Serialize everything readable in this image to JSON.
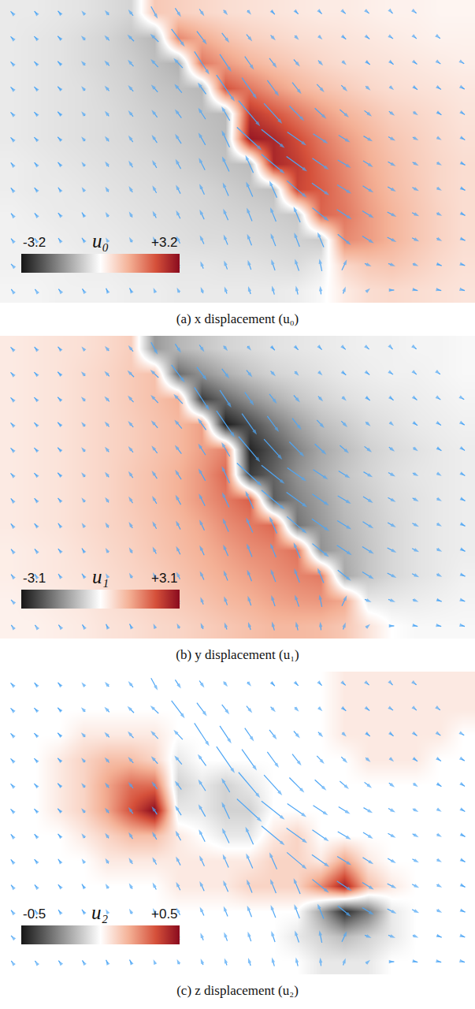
{
  "chart_data": [
    {
      "type": "heatmap",
      "caption": "(a) x displacement (u₀)",
      "colorbar_title": "u₀",
      "tick_labels": false,
      "x": [
        0,
        1,
        2,
        3,
        4,
        5,
        6,
        7,
        8,
        9,
        10,
        11,
        12,
        13,
        14,
        15,
        16,
        17,
        18,
        19
      ],
      "y": [
        0,
        1,
        2,
        3,
        4,
        5,
        6,
        7,
        8,
        9,
        10,
        11
      ],
      "xlim": [
        -0.5,
        19.5
      ],
      "ylim": [
        11.5,
        -0.5
      ],
      "colorbar_range": [
        -3.2,
        3.2
      ],
      "colorbar_ticks": [
        -3.2,
        {
          "value": 3.2,
          "label": "+3.2"
        }
      ],
      "values": [
        [
          -0.3,
          -0.3,
          -0.35,
          -0.4,
          -0.5,
          -0.6,
          0.8,
          0.7,
          0.6,
          0.5,
          0.45,
          0.4,
          0.35,
          0.3,
          0.3,
          0.25,
          0.2,
          0.2,
          0.15,
          0.15
        ],
        [
          -0.3,
          -0.35,
          -0.4,
          -0.5,
          -0.6,
          -0.8,
          -1.0,
          1.6,
          1.2,
          0.9,
          0.7,
          0.6,
          0.5,
          0.45,
          0.4,
          0.35,
          0.3,
          0.25,
          0.2,
          0.2
        ],
        [
          -0.3,
          -0.35,
          -0.4,
          -0.5,
          -0.6,
          -0.7,
          -0.9,
          -1.1,
          1.8,
          1.4,
          1.1,
          0.9,
          0.75,
          0.6,
          0.5,
          0.45,
          0.4,
          0.35,
          0.3,
          0.25
        ],
        [
          -0.3,
          -0.35,
          -0.4,
          -0.45,
          -0.55,
          -0.65,
          -0.8,
          -0.9,
          -1.0,
          2.2,
          1.8,
          1.4,
          1.1,
          0.9,
          0.75,
          0.6,
          0.5,
          0.45,
          0.4,
          0.35
        ],
        [
          -0.3,
          -0.35,
          -0.4,
          -0.45,
          -0.5,
          -0.6,
          -0.7,
          -0.8,
          -0.9,
          -1.0,
          2.6,
          2.2,
          1.8,
          1.4,
          1.1,
          0.9,
          0.7,
          0.6,
          0.5,
          0.4
        ],
        [
          -0.3,
          -0.35,
          -0.4,
          -0.45,
          -0.5,
          -0.55,
          -0.65,
          -0.75,
          -0.85,
          -0.95,
          3.0,
          2.8,
          2.3,
          1.8,
          1.4,
          1.1,
          0.85,
          0.7,
          0.55,
          0.45
        ],
        [
          -0.25,
          -0.3,
          -0.35,
          -0.4,
          -0.45,
          -0.5,
          -0.55,
          -0.65,
          -0.75,
          -0.85,
          -0.95,
          2.8,
          2.5,
          2.0,
          1.6,
          1.2,
          0.95,
          0.75,
          0.6,
          0.5
        ],
        [
          -0.25,
          -0.3,
          -0.3,
          -0.35,
          -0.4,
          -0.45,
          -0.5,
          -0.55,
          -0.6,
          -0.7,
          -0.8,
          -0.9,
          2.4,
          2.1,
          1.7,
          1.3,
          1.0,
          0.8,
          0.6,
          0.5
        ],
        [
          -0.2,
          -0.25,
          -0.3,
          -0.3,
          -0.35,
          -0.4,
          -0.45,
          -0.5,
          -0.55,
          -0.6,
          -0.65,
          -0.7,
          -0.8,
          2.0,
          1.8,
          1.4,
          1.1,
          0.85,
          0.65,
          0.5
        ],
        [
          -0.2,
          -0.2,
          -0.25,
          -0.3,
          -0.3,
          -0.35,
          -0.4,
          -0.45,
          -0.5,
          -0.5,
          -0.55,
          -0.6,
          -0.65,
          -0.75,
          1.6,
          1.4,
          1.1,
          0.85,
          0.65,
          0.5
        ],
        [
          -0.2,
          -0.2,
          -0.2,
          -0.25,
          -0.25,
          -0.3,
          -0.3,
          -0.35,
          -0.35,
          -0.4,
          -0.4,
          -0.45,
          -0.5,
          -0.3,
          0.6,
          0.8,
          0.85,
          0.7,
          0.55,
          0.45
        ],
        [
          -0.15,
          -0.15,
          -0.2,
          -0.2,
          -0.2,
          -0.25,
          -0.25,
          -0.3,
          -0.3,
          -0.3,
          -0.3,
          -0.3,
          -0.25,
          -0.1,
          0.3,
          0.5,
          0.55,
          0.5,
          0.45,
          0.4
        ]
      ]
    },
    {
      "type": "heatmap",
      "caption": "(b) y displacement (u₁)",
      "colorbar_title": "u₁",
      "tick_labels": false,
      "x": [
        0,
        1,
        2,
        3,
        4,
        5,
        6,
        7,
        8,
        9,
        10,
        11,
        12,
        13,
        14,
        15,
        16,
        17,
        18,
        19
      ],
      "y": [
        0,
        1,
        2,
        3,
        4,
        5,
        6,
        7,
        8,
        9,
        10,
        11
      ],
      "xlim": [
        -0.5,
        19.5
      ],
      "ylim": [
        11.5,
        -0.5
      ],
      "colorbar_range": [
        -3.1,
        3.1
      ],
      "colorbar_ticks": [
        -3.1,
        {
          "value": 3.1,
          "label": "+3.1"
        }
      ],
      "values": [
        [
          0.3,
          0.35,
          0.4,
          0.45,
          0.55,
          0.7,
          -1.4,
          -1.0,
          -0.8,
          -0.6,
          -0.5,
          -0.4,
          -0.35,
          -0.3,
          -0.25,
          -0.2,
          -0.2,
          -0.15,
          -0.15,
          -0.1
        ],
        [
          0.3,
          0.35,
          0.4,
          0.5,
          0.6,
          0.75,
          0.9,
          -2.0,
          -1.5,
          -1.1,
          -0.8,
          -0.6,
          -0.5,
          -0.4,
          -0.3,
          -0.25,
          -0.2,
          -0.2,
          -0.15,
          -0.1
        ],
        [
          0.3,
          0.35,
          0.4,
          0.5,
          0.6,
          0.75,
          0.9,
          1.1,
          -2.6,
          -2.0,
          -1.5,
          -1.1,
          -0.8,
          -0.6,
          -0.45,
          -0.35,
          -0.3,
          -0.25,
          -0.2,
          -0.15
        ],
        [
          0.3,
          0.35,
          0.4,
          0.5,
          0.6,
          0.7,
          0.85,
          1.0,
          1.3,
          -3.0,
          -2.4,
          -1.8,
          -1.3,
          -0.9,
          -0.7,
          -0.5,
          -0.4,
          -0.3,
          -0.25,
          -0.2
        ],
        [
          0.3,
          0.35,
          0.4,
          0.5,
          0.6,
          0.7,
          0.85,
          1.0,
          1.3,
          1.6,
          -2.9,
          -2.3,
          -1.7,
          -1.2,
          -0.9,
          -0.65,
          -0.5,
          -0.4,
          -0.3,
          -0.25
        ],
        [
          0.3,
          0.35,
          0.4,
          0.5,
          0.6,
          0.75,
          0.9,
          1.1,
          1.4,
          1.9,
          -2.6,
          -2.1,
          -1.5,
          -1.1,
          -0.8,
          -0.6,
          -0.45,
          -0.35,
          -0.3,
          -0.25
        ],
        [
          0.3,
          0.35,
          0.4,
          0.5,
          0.6,
          0.75,
          0.9,
          1.1,
          1.4,
          1.7,
          2.0,
          -2.2,
          -1.7,
          -1.3,
          -0.9,
          -0.7,
          -0.5,
          -0.4,
          -0.3,
          -0.25
        ],
        [
          0.3,
          0.35,
          0.4,
          0.5,
          0.6,
          0.7,
          0.85,
          1.0,
          1.2,
          1.5,
          1.7,
          1.9,
          -1.9,
          -1.4,
          -1.0,
          -0.75,
          -0.55,
          -0.4,
          -0.3,
          -0.25
        ],
        [
          0.25,
          0.3,
          0.35,
          0.45,
          0.55,
          0.65,
          0.8,
          0.95,
          1.1,
          1.3,
          1.5,
          1.6,
          1.8,
          -1.5,
          -1.1,
          -0.8,
          -0.55,
          -0.4,
          -0.3,
          -0.25
        ],
        [
          0.25,
          0.3,
          0.35,
          0.4,
          0.5,
          0.6,
          0.7,
          0.85,
          1.0,
          1.15,
          1.3,
          1.45,
          1.6,
          1.7,
          -1.2,
          -0.8,
          -0.55,
          -0.4,
          -0.3,
          -0.2
        ],
        [
          0.2,
          0.25,
          0.3,
          0.35,
          0.45,
          0.55,
          0.65,
          0.75,
          0.85,
          1.0,
          1.1,
          1.25,
          1.35,
          1.4,
          1.2,
          -0.3,
          -0.3,
          -0.25,
          -0.2,
          -0.15
        ],
        [
          0.2,
          0.2,
          0.25,
          0.3,
          0.4,
          0.45,
          0.55,
          0.6,
          0.7,
          0.8,
          0.9,
          1.0,
          1.0,
          0.95,
          0.8,
          0.4,
          0.0,
          -0.1,
          -0.1,
          -0.1
        ]
      ]
    },
    {
      "type": "heatmap",
      "caption": "(c) z displacement (u₂)",
      "colorbar_title": "u₂",
      "tick_labels": false,
      "x": [
        0,
        1,
        2,
        3,
        4,
        5,
        6,
        7,
        8,
        9,
        10,
        11,
        12,
        13,
        14,
        15,
        16,
        17,
        18,
        19
      ],
      "y": [
        0,
        1,
        2,
        3,
        4,
        5,
        6,
        7,
        8,
        9,
        10,
        11
      ],
      "xlim": [
        -0.5,
        19.5
      ],
      "ylim": [
        11.5,
        -0.5
      ],
      "colorbar_range": [
        -0.5,
        0.5
      ],
      "colorbar_ticks": [
        -0.5,
        {
          "value": 0.5,
          "label": "+0.5"
        }
      ],
      "values": [
        [
          0,
          0,
          0,
          0,
          0,
          0,
          0,
          0,
          0,
          0,
          0,
          0,
          0,
          0,
          0.05,
          0.05,
          0.05,
          0.05,
          0.05,
          0.05
        ],
        [
          0,
          0,
          0,
          0,
          0,
          0,
          0,
          0,
          0,
          0,
          0,
          0,
          0,
          0,
          0.05,
          0.05,
          0.05,
          0.05,
          0.05,
          0.05
        ],
        [
          0,
          0,
          0,
          0.05,
          0.05,
          0.05,
          0.05,
          0,
          0,
          0,
          0,
          0,
          0,
          0,
          0.05,
          0.05,
          0.05,
          0.05,
          0.05,
          0
        ],
        [
          0,
          0,
          0.05,
          0.1,
          0.15,
          0.15,
          0.1,
          -0.05,
          0,
          0,
          0,
          0,
          0,
          0,
          0,
          0.05,
          0.05,
          0.05,
          0,
          0
        ],
        [
          0,
          0,
          0.05,
          0.1,
          0.2,
          0.3,
          0.3,
          -0.1,
          -0.05,
          -0.1,
          -0.05,
          0,
          0,
          0,
          0,
          0,
          0,
          0,
          0,
          0
        ],
        [
          0,
          0,
          0.05,
          0.1,
          0.2,
          0.35,
          0.5,
          -0.05,
          -0.05,
          -0.1,
          -0.1,
          0,
          0,
          0,
          0,
          0,
          0,
          0,
          0,
          0
        ],
        [
          0,
          0,
          0,
          0.05,
          0.1,
          0.15,
          0.15,
          0.05,
          0,
          -0.05,
          -0.05,
          0.05,
          0.1,
          0,
          0,
          0,
          0,
          0,
          0,
          0
        ],
        [
          0,
          0,
          0,
          0,
          0.05,
          0.05,
          0.05,
          0.05,
          0.05,
          0.05,
          0.05,
          0.1,
          0.1,
          0.05,
          0.2,
          0.05,
          0,
          0,
          0,
          0
        ],
        [
          0,
          0,
          0,
          0,
          0,
          0,
          0,
          0.05,
          0.05,
          0.05,
          0.1,
          0.1,
          0.1,
          0.25,
          0.45,
          0.15,
          0.05,
          0,
          0,
          0
        ],
        [
          0,
          0,
          0,
          0,
          0,
          0,
          0,
          0,
          0,
          0,
          0,
          0,
          0,
          -0.2,
          -0.45,
          -0.3,
          -0.05,
          0,
          0,
          0
        ],
        [
          0,
          0,
          0,
          0,
          0,
          0,
          0,
          0,
          0,
          0,
          0,
          0,
          -0.05,
          -0.1,
          -0.15,
          -0.1,
          -0.05,
          0,
          0,
          0
        ],
        [
          0,
          0,
          0,
          0,
          0,
          0,
          0,
          0,
          0,
          0,
          0,
          0,
          0,
          -0.05,
          -0.05,
          -0.05,
          0,
          0,
          0,
          0
        ]
      ]
    }
  ]
}
